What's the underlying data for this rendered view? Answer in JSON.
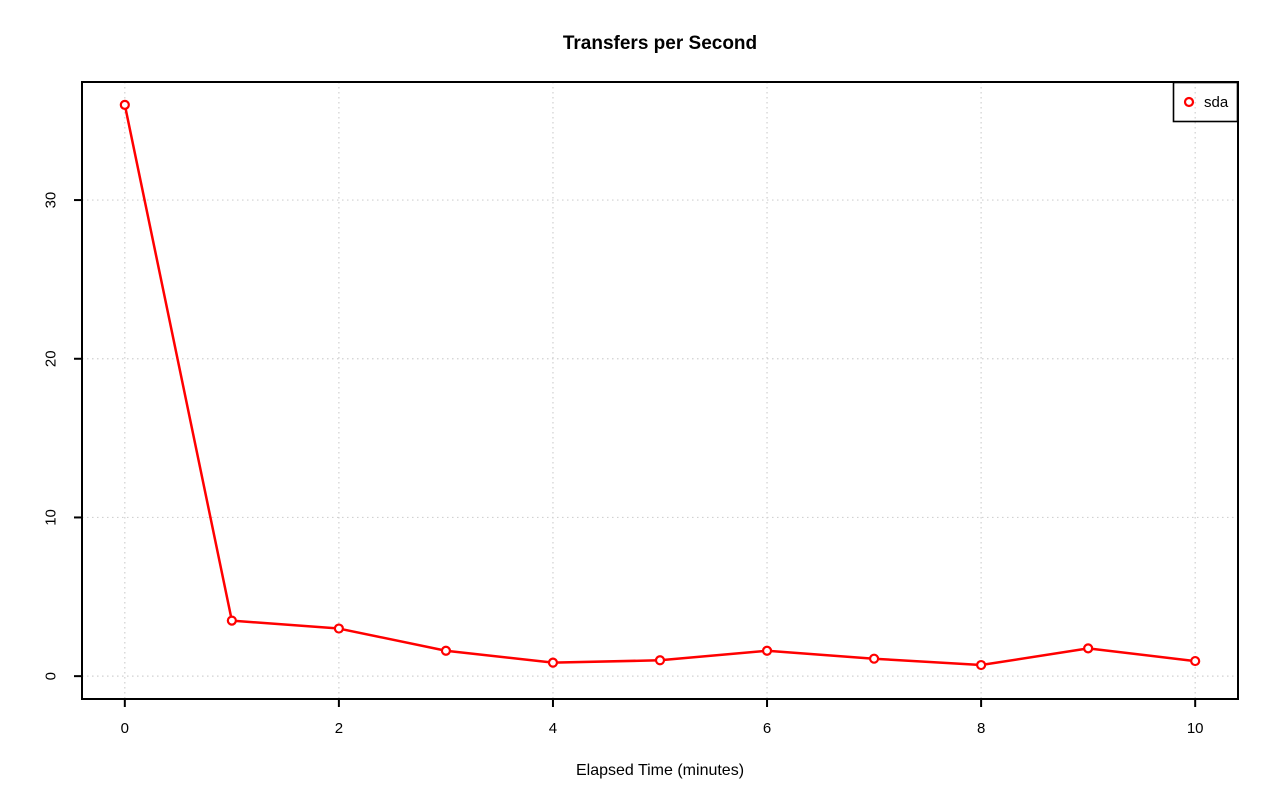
{
  "chart_data": {
    "type": "line",
    "title": "Transfers per Second",
    "xlabel": "Elapsed Time (minutes)",
    "ylabel": "",
    "x": [
      0,
      1,
      2,
      3,
      4,
      5,
      6,
      7,
      8,
      9,
      10
    ],
    "series": [
      {
        "name": "sda",
        "color": "#ff0000",
        "marker": "open-circle",
        "values": [
          36,
          3.5,
          3,
          1.6,
          0.85,
          1,
          1.6,
          1.1,
          0.7,
          1.75,
          0.95
        ]
      }
    ],
    "x_ticks": [
      0,
      2,
      4,
      6,
      8,
      10
    ],
    "y_ticks": [
      0,
      10,
      20,
      30
    ],
    "xlim": [
      -0.4,
      10.4
    ],
    "ylim": [
      -1.44,
      37.44
    ],
    "grid": true,
    "grid_color": "#d0d0d0",
    "axis_color": "#000000",
    "background_color": "#ffffff",
    "legend": {
      "position": "top-right",
      "entries": [
        "sda"
      ]
    }
  }
}
